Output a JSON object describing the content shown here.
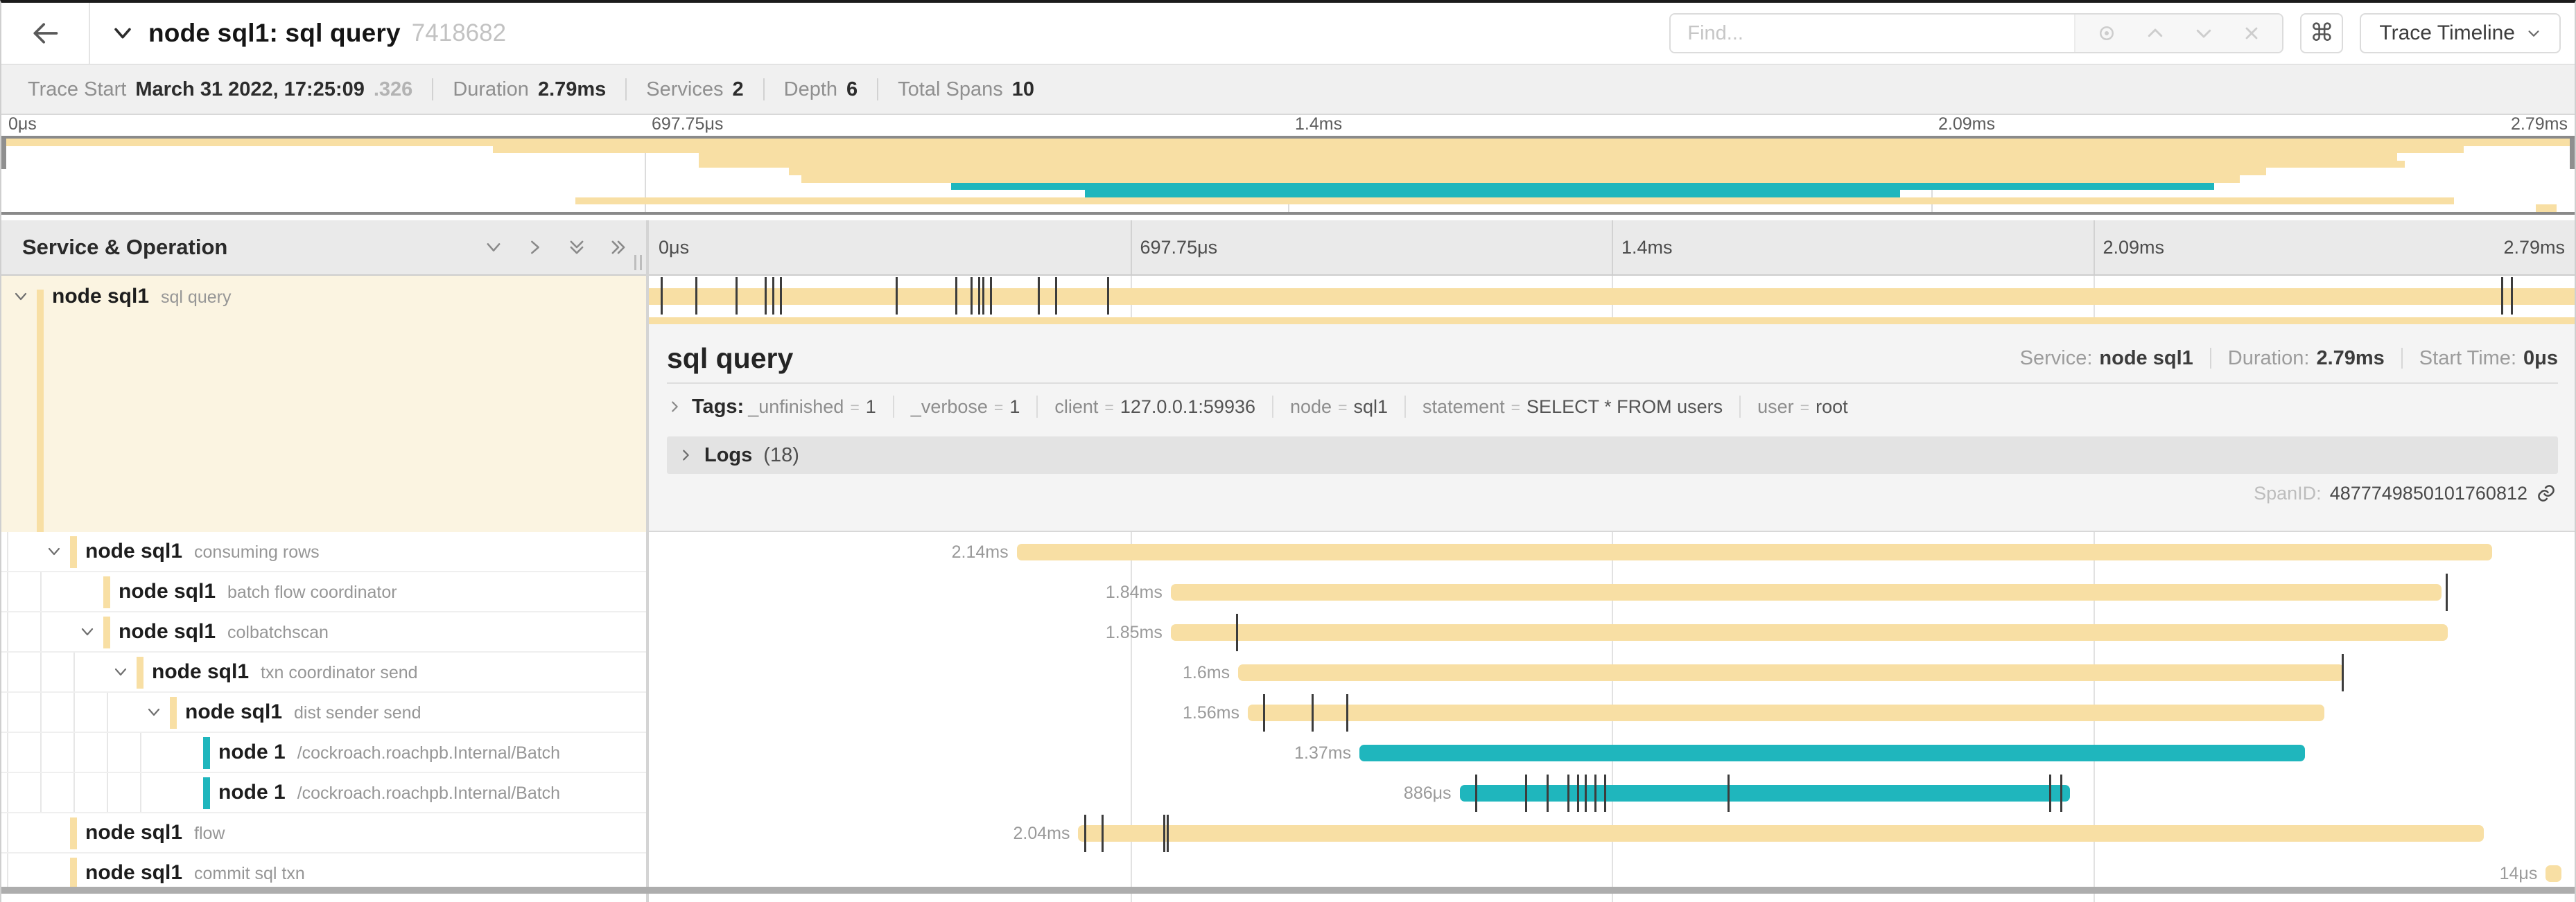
{
  "header": {
    "title": "node sql1: sql query",
    "trace_id": "7418682",
    "find_placeholder": "Find...",
    "keyboard_shortcut_label": "⌘",
    "view_selector_label": "Trace Timeline"
  },
  "summary": {
    "items": [
      {
        "label": "Trace Start",
        "value": "March 31 2022, 17:25:09",
        "suffix": ".326"
      },
      {
        "label": "Duration",
        "value": "2.79ms"
      },
      {
        "label": "Services",
        "value": "2"
      },
      {
        "label": "Depth",
        "value": "6"
      },
      {
        "label": "Total Spans",
        "value": "10"
      }
    ]
  },
  "timeline": {
    "left_header": "Service & Operation",
    "axis_ticks": [
      "0μs",
      "697.75μs",
      "1.4ms",
      "2.09ms",
      "2.79ms"
    ]
  },
  "colors": {
    "tan": "#f8dfa4",
    "teal": "#1fb6bd"
  },
  "spans": [
    {
      "service": "node sql1",
      "operation": "sql query",
      "color": "tan",
      "level": 0,
      "chevron": true,
      "selected": true,
      "start": 0,
      "width": 100,
      "duration_label": "",
      "ticks": [
        0.6,
        2.4,
        4.5,
        6.0,
        6.4,
        6.8,
        12.8,
        15.9,
        16.7,
        17.1,
        17.3,
        17.7,
        20.2,
        21.1,
        23.8,
        96.2,
        96.7
      ]
    },
    {
      "service": "node sql1",
      "operation": "consuming rows",
      "color": "tan",
      "level": 1,
      "chevron": true,
      "start": 19.1,
      "width": 76.6,
      "duration_label": "2.14ms",
      "ticks": []
    },
    {
      "service": "node sql1",
      "operation": "batch flow coordinator",
      "color": "tan",
      "level": 2,
      "chevron": false,
      "start": 27.1,
      "width": 66.0,
      "duration_label": "1.84ms",
      "ticks": [
        93.3
      ]
    },
    {
      "service": "node sql1",
      "operation": "colbatchscan",
      "color": "tan",
      "level": 2,
      "chevron": true,
      "start": 27.1,
      "width": 66.3,
      "duration_label": "1.85ms",
      "ticks": [
        30.5
      ]
    },
    {
      "service": "node sql1",
      "operation": "txn coordinator send",
      "color": "tan",
      "level": 3,
      "chevron": true,
      "start": 30.6,
      "width": 57.4,
      "duration_label": "1.6ms",
      "ticks": [
        87.9
      ]
    },
    {
      "service": "node sql1",
      "operation": "dist sender send",
      "color": "tan",
      "level": 4,
      "chevron": true,
      "start": 31.1,
      "width": 55.9,
      "duration_label": "1.56ms",
      "ticks": [
        31.9,
        34.4,
        36.2
      ]
    },
    {
      "service": "node 1",
      "operation": "/cockroach.roachpb.Internal/Batch",
      "color": "teal",
      "level": 5,
      "chevron": false,
      "start": 36.9,
      "width": 49.1,
      "duration_label": "1.37ms",
      "ticks": []
    },
    {
      "service": "node 1",
      "operation": "/cockroach.roachpb.Internal/Batch",
      "color": "teal",
      "level": 5,
      "chevron": false,
      "start": 42.1,
      "width": 31.7,
      "duration_label": "886μs",
      "ticks": [
        42.9,
        45.5,
        46.6,
        47.7,
        48.2,
        48.6,
        49.1,
        49.6,
        56.0,
        72.7,
        73.3
      ]
    },
    {
      "service": "node sql1",
      "operation": "flow",
      "color": "tan",
      "level": 1,
      "chevron": false,
      "start": 22.3,
      "width": 73.0,
      "duration_label": "2.04ms",
      "ticks": [
        22.6,
        23.5,
        26.7,
        26.9
      ]
    },
    {
      "service": "node sql1",
      "operation": "commit sql txn",
      "color": "tan",
      "level": 1,
      "chevron": false,
      "start": 98.5,
      "width": 0.8,
      "duration_label": "14μs",
      "ticks": []
    }
  ],
  "detail": {
    "title": "sql query",
    "meta": [
      {
        "label": "Service:",
        "value": "node sql1"
      },
      {
        "label": "Duration:",
        "value": "2.79ms"
      },
      {
        "label": "Start Time:",
        "value": "0μs"
      }
    ],
    "tags_label": "Tags:",
    "tags": [
      {
        "key": "_unfinished",
        "value": "1"
      },
      {
        "key": "_verbose",
        "value": "1"
      },
      {
        "key": "client",
        "value": "127.0.0.1:59936"
      },
      {
        "key": "node",
        "value": "sql1"
      },
      {
        "key": "statement",
        "value": "SELECT * FROM users"
      },
      {
        "key": "user",
        "value": "root"
      }
    ],
    "logs_label": "Logs",
    "logs_count": "(18)",
    "span_id_label": "SpanID:",
    "span_id": "4877749850101760812"
  }
}
